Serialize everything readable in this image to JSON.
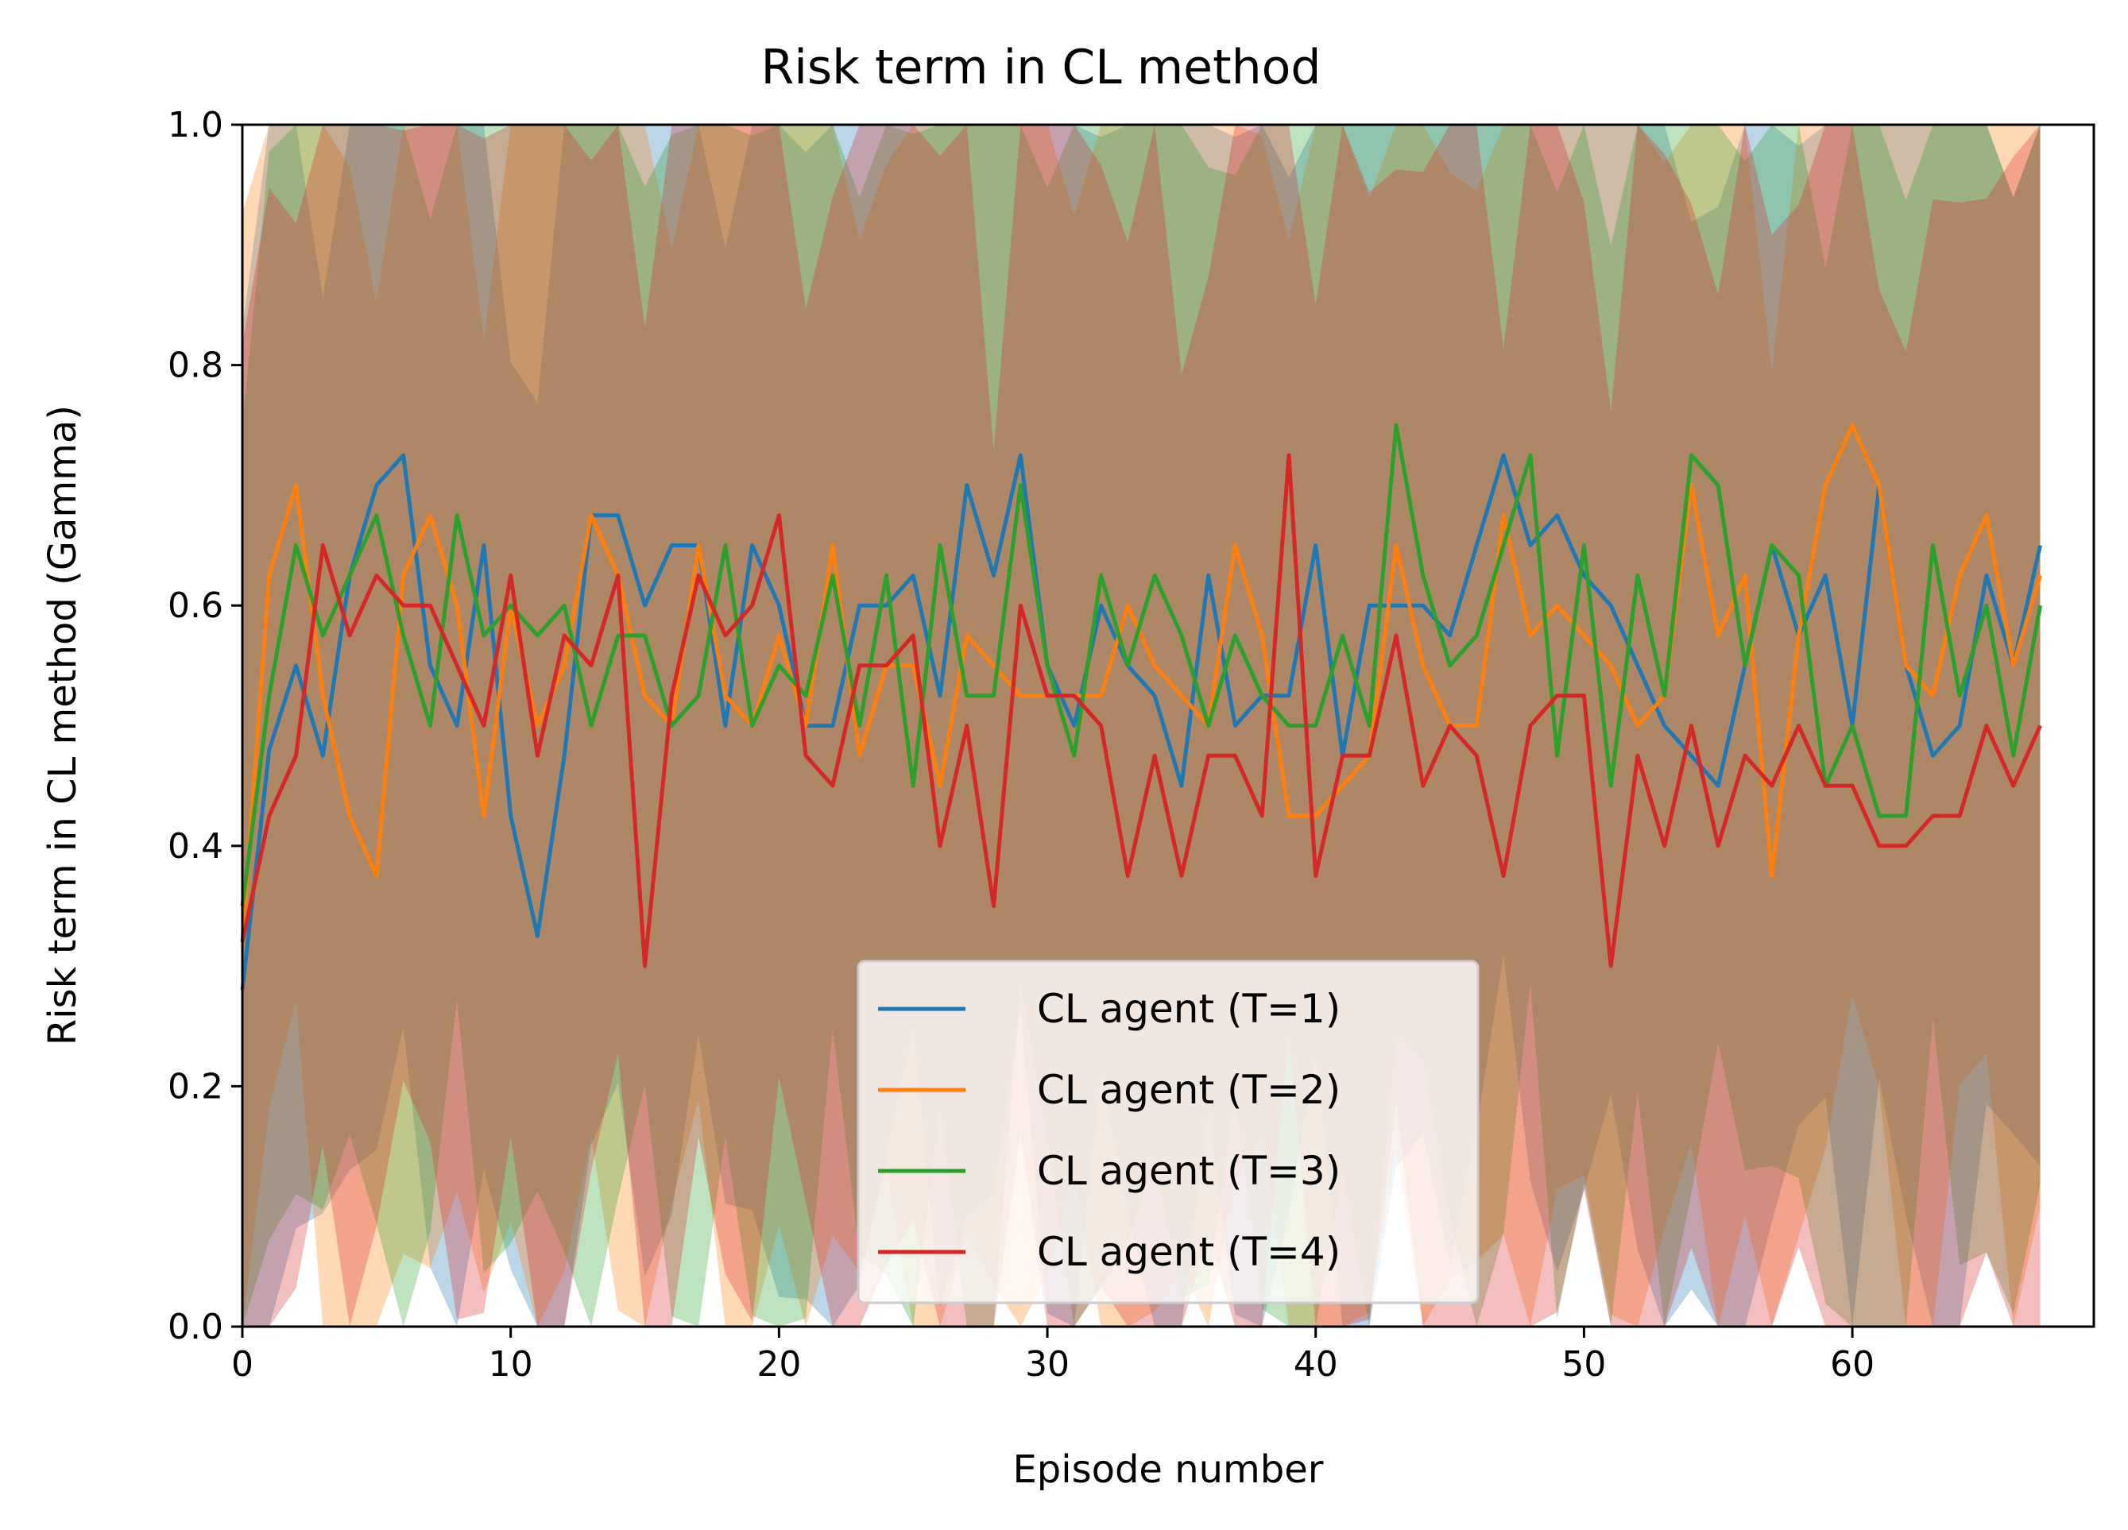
{
  "chart_data": {
    "type": "line",
    "title": "Risk term in CL method",
    "xlabel": "Episode number",
    "ylabel": "Risk term in CL method (Gamma)",
    "xlim": [
      0,
      69
    ],
    "ylim": [
      0,
      1.0
    ],
    "xticks": [
      0,
      10,
      20,
      30,
      40,
      50,
      60
    ],
    "yticks": [
      0.0,
      0.2,
      0.4,
      0.6,
      0.8,
      1.0
    ],
    "ytick_labels": [
      "0.0",
      "0.2",
      "0.4",
      "0.6",
      "0.8",
      "1.0"
    ],
    "grid": false,
    "legend_position": "lower center",
    "shaded_bands": true,
    "series": [
      {
        "name": "CL agent (T=1)",
        "color": "#1f77b4",
        "values": [
          0.28,
          0.48,
          0.55,
          0.475,
          0.625,
          0.7,
          0.725,
          0.55,
          0.5,
          0.65,
          0.425,
          0.325,
          0.475,
          0.675,
          0.675,
          0.6,
          0.65,
          0.65,
          0.5,
          0.65,
          0.6,
          0.5,
          0.5,
          0.6,
          0.6,
          0.625,
          0.525,
          0.7,
          0.625,
          0.725,
          0.55,
          0.5,
          0.6,
          0.55,
          0.525,
          0.45,
          0.625,
          0.5,
          0.525,
          0.525,
          0.65,
          0.475,
          0.6,
          0.6,
          0.6,
          0.575,
          0.65,
          0.725,
          0.65,
          0.675,
          0.625,
          0.6,
          0.55,
          0.5,
          0.475,
          0.45,
          0.55,
          0.65,
          0.575,
          0.625,
          0.5,
          0.7,
          0.55,
          0.475,
          0.5,
          0.625,
          0.55,
          0.65
        ]
      },
      {
        "name": "CL agent (T=2)",
        "color": "#ff7f0e",
        "values": [
          0.32,
          0.625,
          0.7,
          0.525,
          0.425,
          0.375,
          0.625,
          0.675,
          0.6,
          0.425,
          0.6,
          0.5,
          0.55,
          0.675,
          0.625,
          0.525,
          0.5,
          0.65,
          0.525,
          0.5,
          0.575,
          0.5,
          0.65,
          0.475,
          0.55,
          0.55,
          0.45,
          0.575,
          0.55,
          0.525,
          0.525,
          0.525,
          0.525,
          0.6,
          0.55,
          0.525,
          0.5,
          0.65,
          0.575,
          0.425,
          0.425,
          0.45,
          0.475,
          0.65,
          0.55,
          0.5,
          0.5,
          0.675,
          0.575,
          0.6,
          0.575,
          0.55,
          0.5,
          0.525,
          0.7,
          0.575,
          0.625,
          0.375,
          0.575,
          0.7,
          0.75,
          0.7,
          0.55,
          0.525,
          0.625,
          0.675,
          0.55,
          0.625
        ]
      },
      {
        "name": "CL agent (T=3)",
        "color": "#2ca02c",
        "values": [
          0.35,
          0.525,
          0.65,
          0.575,
          0.625,
          0.675,
          0.575,
          0.5,
          0.675,
          0.575,
          0.6,
          0.575,
          0.6,
          0.5,
          0.575,
          0.575,
          0.5,
          0.525,
          0.65,
          0.5,
          0.55,
          0.525,
          0.625,
          0.5,
          0.625,
          0.45,
          0.65,
          0.525,
          0.525,
          0.7,
          0.55,
          0.475,
          0.625,
          0.55,
          0.625,
          0.575,
          0.5,
          0.575,
          0.525,
          0.5,
          0.5,
          0.575,
          0.5,
          0.75,
          0.625,
          0.55,
          0.575,
          0.65,
          0.725,
          0.475,
          0.65,
          0.45,
          0.625,
          0.525,
          0.725,
          0.7,
          0.55,
          0.65,
          0.625,
          0.45,
          0.5,
          0.425,
          0.425,
          0.65,
          0.525,
          0.6,
          0.475,
          0.6
        ]
      },
      {
        "name": "CL agent (T=4)",
        "color": "#d62728",
        "values": [
          0.32,
          0.425,
          0.475,
          0.65,
          0.575,
          0.625,
          0.6,
          0.6,
          0.55,
          0.5,
          0.625,
          0.475,
          0.575,
          0.55,
          0.625,
          0.3,
          0.525,
          0.625,
          0.575,
          0.6,
          0.675,
          0.475,
          0.45,
          0.55,
          0.55,
          0.575,
          0.4,
          0.5,
          0.35,
          0.6,
          0.525,
          0.525,
          0.5,
          0.375,
          0.475,
          0.375,
          0.475,
          0.475,
          0.425,
          0.725,
          0.375,
          0.475,
          0.475,
          0.575,
          0.45,
          0.5,
          0.475,
          0.375,
          0.5,
          0.525,
          0.525,
          0.3,
          0.475,
          0.4,
          0.5,
          0.4,
          0.475,
          0.45,
          0.5,
          0.45,
          0.45,
          0.4,
          0.4,
          0.425,
          0.425,
          0.5,
          0.45,
          0.5
        ]
      }
    ]
  }
}
